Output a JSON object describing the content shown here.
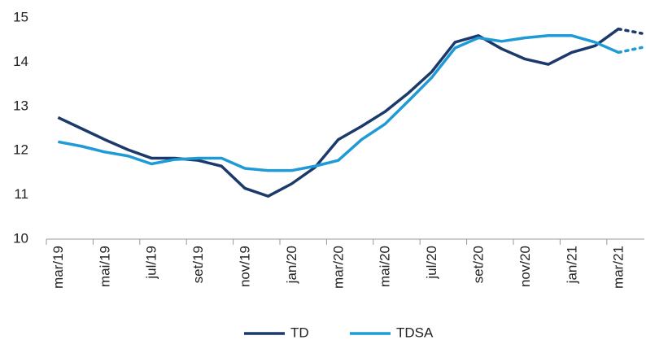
{
  "chart_data": {
    "type": "line",
    "categories": [
      "mar/19",
      null,
      "mai/19",
      null,
      "jul/19",
      null,
      "set/19",
      null,
      "nov/19",
      null,
      "jan/20",
      null,
      "mar/20",
      null,
      "mai/20",
      null,
      "jul/20",
      null,
      "set/20",
      null,
      "nov/20",
      null,
      "jan/21",
      null,
      "mar/21",
      null
    ],
    "series": [
      {
        "name": "TD",
        "color": "#1b3a6b",
        "values": [
          12.75,
          12.5,
          12.25,
          12.02,
          11.83,
          11.83,
          11.78,
          11.65,
          11.15,
          10.97,
          11.25,
          11.62,
          12.25,
          12.55,
          12.88,
          13.3,
          13.78,
          14.45,
          14.6,
          14.3,
          14.07,
          13.95,
          14.22,
          14.37,
          14.75,
          null
        ]
      },
      {
        "name": "TDSA",
        "color": "#1e9ad6",
        "values": [
          12.2,
          12.1,
          11.97,
          11.88,
          11.7,
          11.8,
          11.83,
          11.83,
          11.6,
          11.55,
          11.55,
          11.65,
          11.78,
          12.25,
          12.6,
          13.12,
          13.65,
          14.32,
          14.55,
          14.47,
          14.55,
          14.6,
          14.6,
          14.45,
          14.22,
          null
        ]
      },
      {
        "color": "#1b3a6b",
        "dashed": true,
        "values": [
          null,
          null,
          null,
          null,
          null,
          null,
          null,
          null,
          null,
          null,
          null,
          null,
          null,
          null,
          null,
          null,
          null,
          null,
          null,
          null,
          null,
          null,
          null,
          null,
          14.75,
          14.65
        ]
      },
      {
        "color": "#1e9ad6",
        "dashed": true,
        "values": [
          null,
          null,
          null,
          null,
          null,
          null,
          null,
          null,
          null,
          null,
          null,
          null,
          null,
          null,
          null,
          null,
          null,
          null,
          null,
          null,
          null,
          null,
          null,
          null,
          14.22,
          14.33
        ]
      }
    ],
    "ylim": [
      10,
      15
    ],
    "yticks": [
      10,
      11,
      12,
      13,
      14,
      15
    ],
    "grid": false,
    "legend": "bottom"
  }
}
